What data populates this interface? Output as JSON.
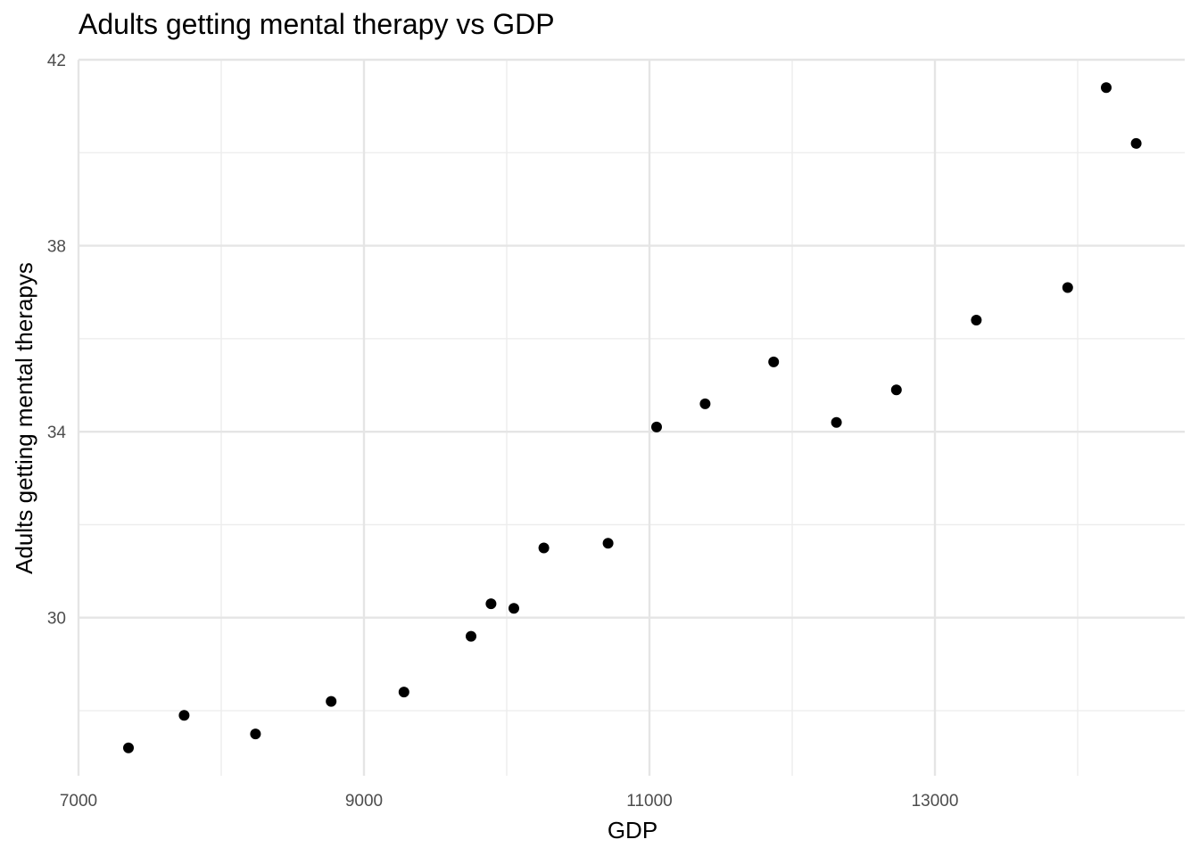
{
  "chart_data": {
    "type": "scatter",
    "title": "Adults getting mental therapy vs GDP",
    "xlabel": "GDP",
    "ylabel": "Adults getting mental therapys",
    "xlim": [
      7000,
      14750
    ],
    "ylim": [
      26.6,
      42
    ],
    "x_ticks": [
      7000,
      9000,
      11000,
      13000
    ],
    "x_tick_labels": [
      "7000",
      "9000",
      "11000",
      "13000"
    ],
    "x_minor_ticks": [
      8000,
      10000,
      12000,
      14000
    ],
    "y_ticks": [
      30,
      34,
      38,
      42
    ],
    "y_tick_labels": [
      "30",
      "34",
      "38",
      "42"
    ],
    "y_minor_ticks": [
      28,
      32,
      36,
      40
    ],
    "grid": true,
    "legend": "none",
    "point_color": "#000000",
    "x": [
      7350,
      7740,
      8240,
      8770,
      9280,
      9750,
      9890,
      10050,
      10260,
      10710,
      11050,
      11390,
      11870,
      12310,
      12730,
      13290,
      13930,
      14200,
      14410
    ],
    "y": [
      27.2,
      27.9,
      27.5,
      28.2,
      28.4,
      29.6,
      30.3,
      30.2,
      31.5,
      31.6,
      34.1,
      34.6,
      35.5,
      34.2,
      34.9,
      36.4,
      37.1,
      41.4,
      40.2
    ]
  }
}
